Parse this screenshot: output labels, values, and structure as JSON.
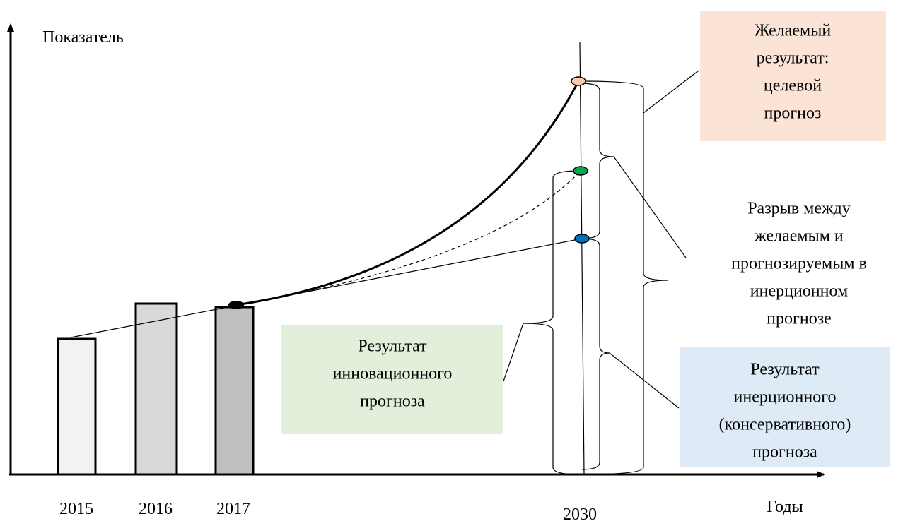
{
  "axes": {
    "y_label": "Показатель",
    "x_label": "Годы"
  },
  "years": [
    "2015",
    "2016",
    "2017",
    "2030"
  ],
  "boxes": {
    "target": {
      "lines": [
        "Желаемый",
        "результат:",
        "целевой",
        "прогноз"
      ]
    },
    "gap": {
      "lines": [
        "Разрыв между",
        "желаемым и",
        "прогнозируемым в",
        "инерционном",
        "прогнозе"
      ]
    },
    "innovation": {
      "lines": [
        "Результат",
        "инновационного",
        "прогноза"
      ]
    },
    "inertial": {
      "lines": [
        "Результат",
        "инерционного",
        "(консервативного)",
        "прогноза"
      ]
    }
  }
}
